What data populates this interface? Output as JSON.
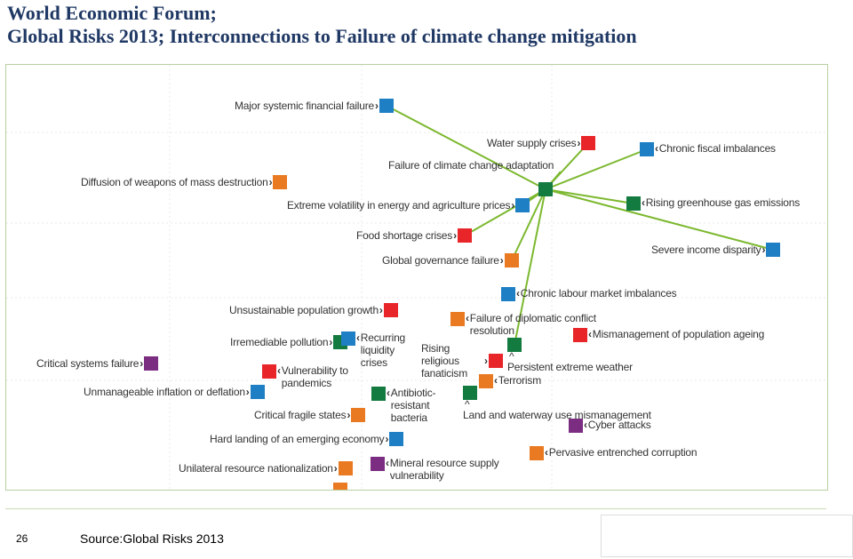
{
  "title": {
    "line1": "World Economic Forum;",
    "line2": "Global Risks 2013; Interconnections to Failure of climate change mitigation"
  },
  "colors": {
    "economic": "#1f7fc4",
    "environmental": "#137a40",
    "geopolitical": "#e97a22",
    "societal": "#e8262a",
    "technological": "#7b2d82",
    "link": "#7cb82f"
  },
  "hub": {
    "name": "Failure of climate change mitigation",
    "category": "environmental"
  },
  "nodes": [
    {
      "id": "major-systemic-financial-failure",
      "label": "Major systemic financial failure",
      "category": "economic",
      "connected": true
    },
    {
      "id": "water-supply-crises",
      "label": "Water supply crises",
      "category": "societal",
      "connected": true
    },
    {
      "id": "chronic-fiscal-imbalances",
      "label": "Chronic fiscal imbalances",
      "category": "economic",
      "connected": true
    },
    {
      "id": "failure-of-climate-change-adaptation",
      "label": "Failure of climate change adaptation",
      "category": "environmental",
      "connected": true
    },
    {
      "id": "diffusion-of-weapons",
      "label": "Diffusion of weapons of mass destruction",
      "category": "geopolitical",
      "connected": false
    },
    {
      "id": "extreme-volatility",
      "label": "Extreme volatility in energy and agriculture prices",
      "category": "economic",
      "connected": true
    },
    {
      "id": "rising-greenhouse-gas-emissions",
      "label": "Rising greenhouse gas emissions",
      "category": "environmental",
      "connected": true
    },
    {
      "id": "food-shortage-crises",
      "label": "Food shortage crises",
      "category": "societal",
      "connected": true
    },
    {
      "id": "severe-income-disparity",
      "label": "Severe income disparity",
      "category": "economic",
      "connected": true
    },
    {
      "id": "global-governance-failure",
      "label": "Global governance failure",
      "category": "geopolitical",
      "connected": true
    },
    {
      "id": "chronic-labour-market-imbalances",
      "label": "Chronic labour market imbalances",
      "category": "economic",
      "connected": false
    },
    {
      "id": "unsustainable-population-growth",
      "label": "Unsustainable population growth",
      "category": "societal",
      "connected": false
    },
    {
      "id": "failure-of-diplomatic-conflict-resolution",
      "label": "Failure of diplomatic conflict resolution",
      "category": "geopolitical",
      "connected": false
    },
    {
      "id": "mismanagement-of-population-ageing",
      "label": "Mismanagement of population ageing",
      "category": "societal",
      "connected": false
    },
    {
      "id": "irremediable-pollution",
      "label": "Irremediable pollution",
      "category": "environmental",
      "connected": false
    },
    {
      "id": "recurring-liquidity-crises",
      "label": "Recurring liquidity crises",
      "category": "economic",
      "connected": false
    },
    {
      "id": "rising-religious-fanaticism",
      "label": "Rising religious fanaticism",
      "category": "societal",
      "connected": false
    },
    {
      "id": "persistent-extreme-weather",
      "label": "Persistent extreme weather",
      "category": "environmental",
      "connected": true
    },
    {
      "id": "critical-systems-failure",
      "label": "Critical systems failure",
      "category": "technological",
      "connected": false
    },
    {
      "id": "vulnerability-to-pandemics",
      "label": "Vulnerability to pandemics",
      "category": "societal",
      "connected": false
    },
    {
      "id": "terrorism",
      "label": "Terrorism",
      "category": "geopolitical",
      "connected": false
    },
    {
      "id": "unmanageable-inflation-or-deflation",
      "label": "Unmanageable inflation or deflation",
      "category": "economic",
      "connected": false
    },
    {
      "id": "antibiotic-resistant-bacteria",
      "label": "Antibiotic-resistant bacteria",
      "category": "environmental",
      "connected": false
    },
    {
      "id": "land-and-waterway-use-mismanagement",
      "label": "Land and waterway use mismanagement",
      "category": "environmental",
      "connected": false
    },
    {
      "id": "critical-fragile-states",
      "label": "Critical fragile states",
      "category": "geopolitical",
      "connected": false
    },
    {
      "id": "cyber-attacks",
      "label": "Cyber attacks",
      "category": "technological",
      "connected": false
    },
    {
      "id": "hard-landing-of-an-emerging-economy",
      "label": "Hard landing of an emerging economy",
      "category": "economic",
      "connected": false
    },
    {
      "id": "pervasive-entrenched-corruption",
      "label": "Pervasive entrenched corruption",
      "category": "geopolitical",
      "connected": false
    },
    {
      "id": "unilateral-resource-nationalization",
      "label": "Unilateral resource nationalization",
      "category": "geopolitical",
      "connected": false
    },
    {
      "id": "mineral-resource-supply-vulnerability",
      "label": "Mineral resource supply vulnerability",
      "category": "technological",
      "connected": false
    }
  ],
  "footer": {
    "page_number": "26",
    "source": "Source:Global Risks 2013"
  }
}
